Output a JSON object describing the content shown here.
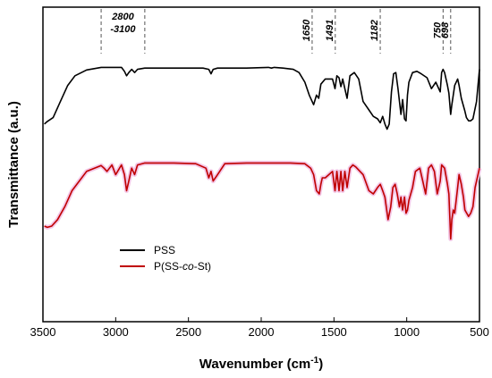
{
  "chart_data": {
    "type": "line",
    "xlabel": "Wavenumber (cm",
    "xlabel_sup": "-1",
    "xlabel_close": ")",
    "ylabel": "Transmittance (a.u.)",
    "xlim": [
      3500,
      500
    ],
    "x_reversed": true,
    "x_ticks": [
      "3500",
      "3000",
      "2500",
      "2000",
      "1500",
      "1000",
      "500"
    ],
    "y_ticks_shown": false,
    "grid": false,
    "legend_position": "lower-left",
    "annotations": [
      {
        "x": 3100,
        "label": "2800",
        "label2": "-3100",
        "x_end": 2800
      },
      {
        "x": 1650,
        "label": "1650"
      },
      {
        "x": 1491,
        "label": "1491"
      },
      {
        "x": 1182,
        "label": "1182"
      },
      {
        "x": 750,
        "label": "750"
      },
      {
        "x": 698,
        "label": "698"
      }
    ],
    "series": [
      {
        "name": "PSS",
        "color": "#000000",
        "x": [
          3490,
          3470,
          3430,
          3380,
          3330,
          3280,
          3200,
          3100,
          2960,
          2940,
          2925,
          2910,
          2890,
          2870,
          2850,
          2800,
          2600,
          2400,
          2360,
          2345,
          2330,
          2300,
          2100,
          1950,
          1930,
          1910,
          1850,
          1780,
          1740,
          1700,
          1670,
          1640,
          1620,
          1605,
          1590,
          1560,
          1510,
          1493,
          1480,
          1465,
          1452,
          1440,
          1425,
          1410,
          1390,
          1360,
          1330,
          1300,
          1260,
          1230,
          1200,
          1182,
          1165,
          1150,
          1135,
          1120,
          1105,
          1090,
          1075,
          1060,
          1040,
          1028,
          1015,
          1005,
          995,
          985,
          960,
          930,
          900,
          860,
          830,
          800,
          770,
          760,
          750,
          740,
          720,
          710,
          698,
          690,
          670,
          650,
          640,
          625,
          600,
          590,
          575,
          560,
          545,
          520,
          500
        ],
        "values": [
          -0.9,
          -0.86,
          -0.8,
          -0.55,
          -0.3,
          -0.15,
          -0.06,
          -0.02,
          -0.02,
          -0.08,
          -0.15,
          -0.1,
          -0.05,
          -0.1,
          -0.05,
          -0.03,
          -0.03,
          -0.03,
          -0.05,
          -0.12,
          -0.05,
          -0.03,
          -0.03,
          -0.02,
          -0.03,
          -0.02,
          -0.03,
          -0.05,
          -0.1,
          -0.25,
          -0.45,
          -0.6,
          -0.45,
          -0.5,
          -0.28,
          -0.2,
          -0.2,
          -0.35,
          -0.15,
          -0.18,
          -0.32,
          -0.2,
          -0.35,
          -0.5,
          -0.15,
          -0.1,
          -0.2,
          -0.55,
          -0.68,
          -0.78,
          -0.82,
          -0.88,
          -0.78,
          -0.9,
          -0.98,
          -0.9,
          -0.4,
          -0.12,
          -0.1,
          -0.35,
          -0.75,
          -0.52,
          -0.82,
          -0.85,
          -0.45,
          -0.25,
          -0.1,
          -0.08,
          -0.12,
          -0.18,
          -0.35,
          -0.25,
          -0.4,
          -0.1,
          -0.05,
          -0.1,
          -0.3,
          -0.42,
          -0.75,
          -0.6,
          -0.3,
          -0.2,
          -0.3,
          -0.5,
          -0.7,
          -0.8,
          -0.85,
          -0.85,
          -0.82,
          -0.55,
          -0.05
        ]
      },
      {
        "name": "P(SS-co-St)",
        "color": "#c00000",
        "x": [
          3490,
          3470,
          3440,
          3400,
          3350,
          3300,
          3200,
          3100,
          3080,
          3060,
          3026,
          3000,
          2960,
          2940,
          2925,
          2910,
          2890,
          2870,
          2850,
          2800,
          2600,
          2450,
          2380,
          2360,
          2345,
          2330,
          2300,
          2250,
          2100,
          2000,
          1900,
          1800,
          1700,
          1660,
          1640,
          1620,
          1601,
          1590,
          1580,
          1560,
          1510,
          1493,
          1480,
          1465,
          1452,
          1440,
          1425,
          1410,
          1390,
          1370,
          1350,
          1300,
          1260,
          1230,
          1200,
          1182,
          1165,
          1150,
          1128,
          1110,
          1095,
          1080,
          1065,
          1050,
          1040,
          1028,
          1015,
          1005,
          995,
          985,
          960,
          940,
          910,
          890,
          870,
          850,
          830,
          810,
          790,
          770,
          760,
          740,
          720,
          710,
          698,
          690,
          680,
          670,
          650,
          640,
          625,
          610,
          600,
          575,
          560,
          545,
          530,
          500
        ],
        "values": [
          -1.0,
          -1.02,
          -1.0,
          -0.9,
          -0.7,
          -0.45,
          -0.15,
          -0.06,
          -0.1,
          -0.15,
          -0.05,
          -0.2,
          -0.05,
          -0.2,
          -0.45,
          -0.3,
          -0.1,
          -0.2,
          -0.05,
          -0.02,
          -0.02,
          -0.03,
          -0.1,
          -0.25,
          -0.15,
          -0.3,
          -0.2,
          -0.03,
          -0.02,
          -0.02,
          -0.02,
          -0.02,
          -0.03,
          -0.1,
          -0.2,
          -0.45,
          -0.5,
          -0.35,
          -0.25,
          -0.25,
          -0.15,
          -0.45,
          -0.15,
          -0.45,
          -0.15,
          -0.45,
          -0.15,
          -0.4,
          -0.1,
          -0.05,
          -0.08,
          -0.2,
          -0.45,
          -0.5,
          -0.4,
          -0.35,
          -0.45,
          -0.55,
          -0.9,
          -0.7,
          -0.4,
          -0.35,
          -0.5,
          -0.7,
          -0.55,
          -0.75,
          -0.55,
          -0.8,
          -0.75,
          -0.6,
          -0.4,
          -0.15,
          -0.1,
          -0.3,
          -0.5,
          -0.1,
          -0.05,
          -0.15,
          -0.5,
          -0.3,
          -0.05,
          -0.1,
          -0.35,
          -0.5,
          -1.2,
          -0.9,
          -0.75,
          -0.8,
          -0.4,
          -0.2,
          -0.35,
          -0.55,
          -0.75,
          -0.85,
          -0.8,
          -0.7,
          -0.4,
          -0.1
        ]
      }
    ]
  }
}
